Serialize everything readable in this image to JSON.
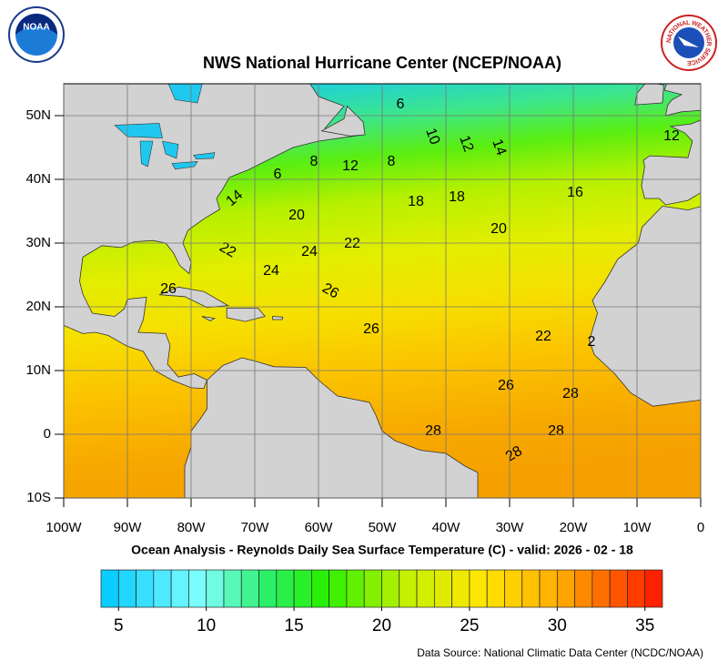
{
  "header": {
    "title": "NWS National Hurricane Center (NCEP/NOAA)",
    "noaa_logo": "NOAA",
    "nws_logo": "NATIONAL WEATHER SERVICE"
  },
  "map": {
    "lon_ticks": [
      {
        "value": -100,
        "label": "100W"
      },
      {
        "value": -90,
        "label": "90W"
      },
      {
        "value": -80,
        "label": "80W"
      },
      {
        "value": -70,
        "label": "70W"
      },
      {
        "value": -60,
        "label": "60W"
      },
      {
        "value": -50,
        "label": "50W"
      },
      {
        "value": -40,
        "label": "40W"
      },
      {
        "value": -30,
        "label": "30W"
      },
      {
        "value": -20,
        "label": "20W"
      },
      {
        "value": -10,
        "label": "10W"
      },
      {
        "value": 0,
        "label": "0"
      }
    ],
    "lat_ticks": [
      {
        "value": 50,
        "label": "50N"
      },
      {
        "value": 40,
        "label": "40N"
      },
      {
        "value": 30,
        "label": "30N"
      },
      {
        "value": 20,
        "label": "20N"
      },
      {
        "value": 10,
        "label": "10N"
      },
      {
        "value": 0,
        "label": "0"
      },
      {
        "value": -10,
        "label": "10S"
      }
    ],
    "contour_labels": [
      6,
      10,
      12,
      14,
      12,
      12,
      8,
      8,
      6,
      14,
      18,
      18,
      16,
      20,
      20,
      22,
      24,
      22,
      24,
      26,
      26,
      26,
      22,
      2,
      26,
      28,
      28,
      28,
      28
    ]
  },
  "subtitle": "Ocean Analysis - Reynolds Daily Sea Surface Temperature (C) - valid: 2026 - 02 - 18",
  "colorbar": {
    "range": [
      4,
      36
    ],
    "ticks": [
      5,
      10,
      15,
      20,
      25,
      30,
      35
    ]
  },
  "source": "Data Source: National Climatic Data Center (NCDC/NOAA)"
}
